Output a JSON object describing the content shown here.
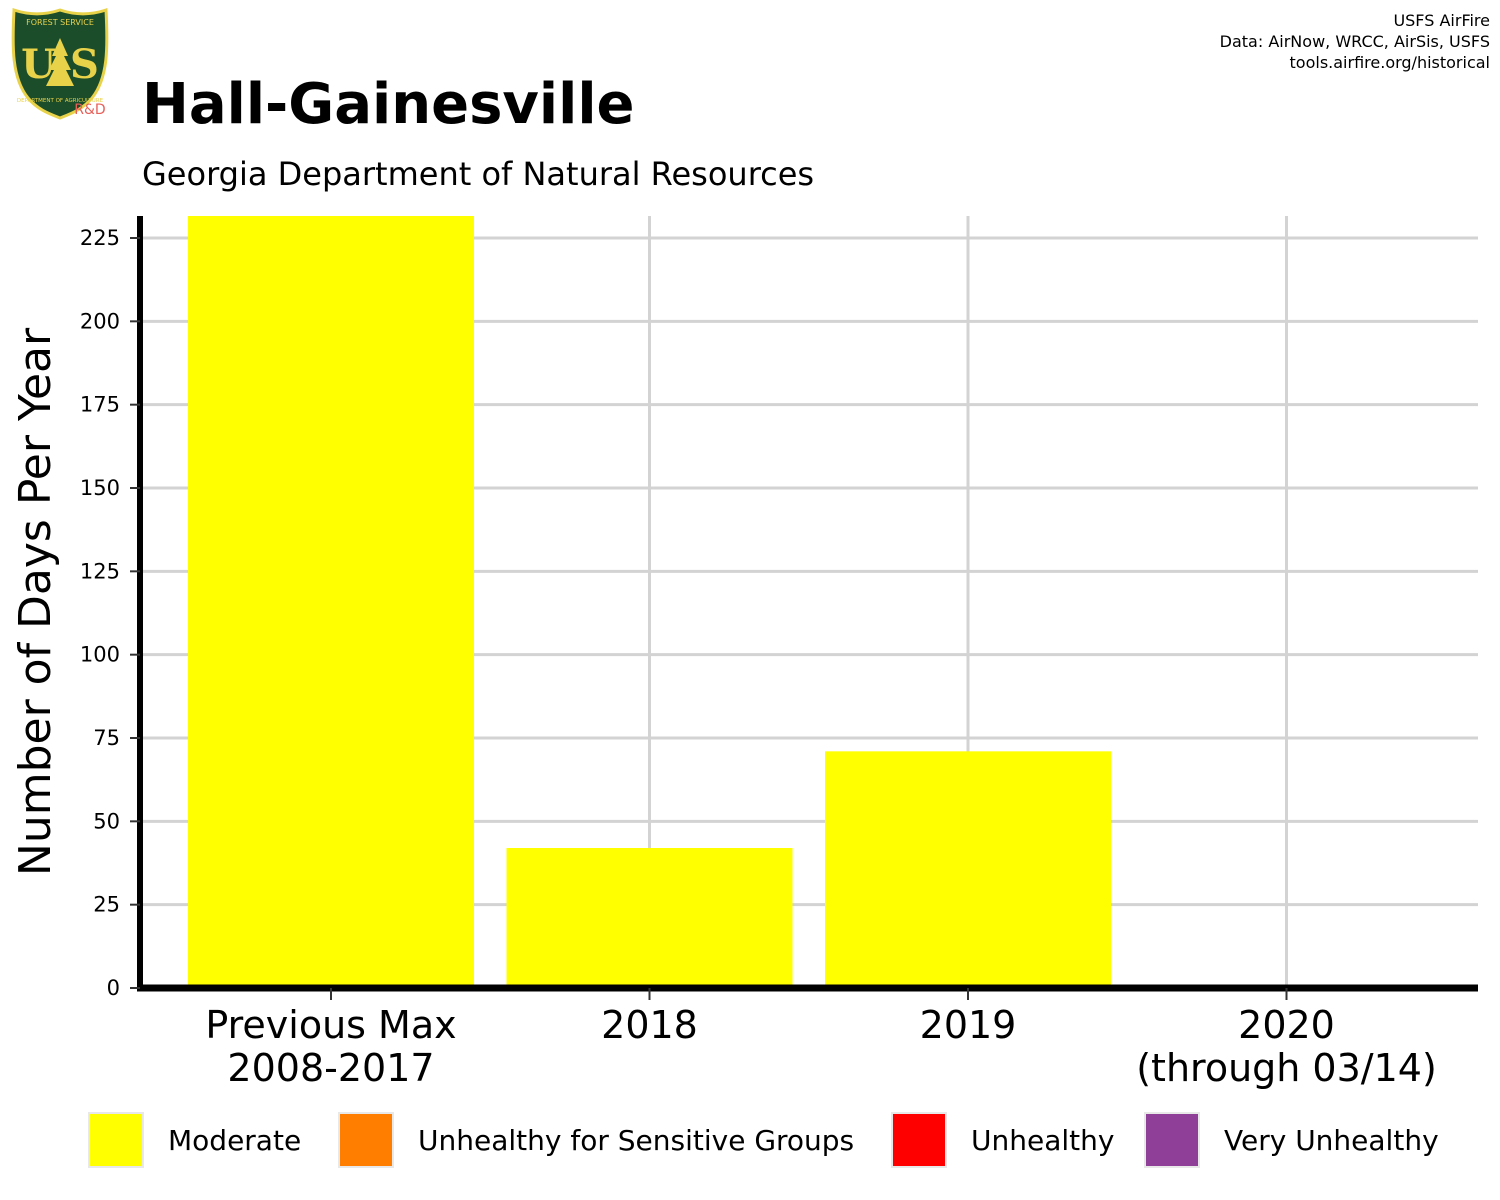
{
  "logo": {
    "text": "U S",
    "top_text": "FOREST SERVICE",
    "bottom_text": "DEPARTMENT OF AGRICULTURE",
    "badge": "R&D",
    "bg_color": "#1b4d2b",
    "fg_color": "#e8d24a",
    "badge_color": "#e8605a"
  },
  "credits": {
    "line1": "USFS AirFire",
    "line2": "Data: AirNow, WRCC, AirSis, USFS",
    "line3": "tools.airfire.org/historical"
  },
  "title": "Hall-Gainesville",
  "subtitle": "Georgia Department of Natural Resources",
  "legend": [
    {
      "label": "Moderate",
      "color": "#ffff00"
    },
    {
      "label": "Unhealthy for Sensitive Groups",
      "color": "#ff7e00"
    },
    {
      "label": "Unhealthy",
      "color": "#ff0000"
    },
    {
      "label": "Very Unhealthy",
      "color": "#8f3f97"
    }
  ],
  "chart_data": {
    "type": "bar",
    "title": "Hall-Gainesville",
    "subtitle": "Georgia Department of Natural Resources",
    "ylabel": "Number of Days Per Year",
    "xlabel": "",
    "ylim": [
      0,
      232
    ],
    "yticks": [
      0,
      25,
      50,
      75,
      100,
      125,
      150,
      175,
      200,
      225
    ],
    "grid": true,
    "legend_position": "bottom",
    "categories": [
      [
        "Previous Max",
        "2008-2017"
      ],
      [
        "2018"
      ],
      [
        "2019"
      ],
      [
        "2020",
        "(through 03/14)"
      ]
    ],
    "series": [
      {
        "name": "Moderate",
        "color": "#ffff00",
        "values": [
          232,
          42,
          71,
          1
        ]
      }
    ]
  }
}
